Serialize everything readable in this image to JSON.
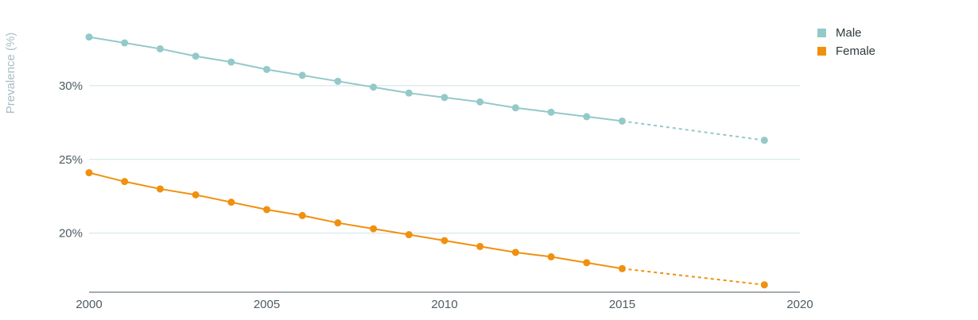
{
  "colors": {
    "male": "#94c9c9",
    "female": "#f0900f",
    "grid": "#cfe3e3",
    "axis": "#4a5a5f",
    "tick_text": "#4d5c61",
    "ylabel_text": "#a8bcc6"
  },
  "legend": {
    "items": [
      {
        "label": "Male"
      },
      {
        "label": "Female"
      }
    ]
  },
  "chart_data": {
    "type": "line",
    "title": "",
    "xlabel": "",
    "ylabel": "Prevalence (%)",
    "xlim": [
      2000,
      2020
    ],
    "ylim": [
      16,
      35
    ],
    "x_ticks": [
      2000,
      2005,
      2010,
      2015,
      2020
    ],
    "y_ticks": [
      20,
      25,
      30
    ],
    "y_tick_format": "percent",
    "grid": true,
    "legend_position": "top-right",
    "series": [
      {
        "name": "Male",
        "solid": {
          "x": [
            2000,
            2001,
            2002,
            2003,
            2004,
            2005,
            2006,
            2007,
            2008,
            2009,
            2010,
            2011,
            2012,
            2013,
            2014,
            2015
          ],
          "y": [
            33.3,
            32.9,
            32.5,
            32.0,
            31.6,
            31.1,
            30.7,
            30.3,
            29.9,
            29.5,
            29.2,
            28.9,
            28.5,
            28.2,
            27.9,
            27.6
          ]
        },
        "projected": {
          "x": [
            2015,
            2019
          ],
          "y": [
            27.6,
            26.3
          ]
        }
      },
      {
        "name": "Female",
        "solid": {
          "x": [
            2000,
            2001,
            2002,
            2003,
            2004,
            2005,
            2006,
            2007,
            2008,
            2009,
            2010,
            2011,
            2012,
            2013,
            2014,
            2015
          ],
          "y": [
            24.1,
            23.5,
            23.0,
            22.6,
            22.1,
            21.6,
            21.2,
            20.7,
            20.3,
            19.9,
            19.5,
            19.1,
            18.7,
            18.4,
            18.0,
            17.6
          ]
        },
        "projected": {
          "x": [
            2015,
            2019
          ],
          "y": [
            17.6,
            16.5
          ]
        }
      }
    ]
  }
}
